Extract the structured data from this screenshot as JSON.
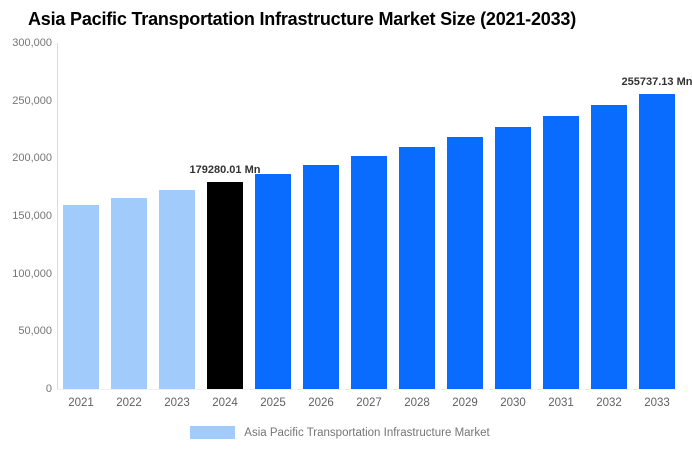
{
  "title": "Asia Pacific Transportation Infrastructure Market Size (2021-2033)",
  "legend": {
    "label": "Asia Pacific Transportation Infrastructure Market",
    "swatch_color": "#A0CBFA"
  },
  "colors": {
    "historical_bar": "#A0CBFA",
    "base_year_bar": "#000000",
    "forecast_bar": "#0A6CFF",
    "axis_line": "#DBDBDB",
    "ytick_text": "#757575",
    "xtick_text": "#616161",
    "data_label_text": "#333333",
    "background": "#FFFFFF"
  },
  "chart_data": {
    "type": "bar",
    "title": "Asia Pacific Transportation Infrastructure Market Size (2021-2033)",
    "unit": "Mn",
    "categories": [
      "2021",
      "2022",
      "2023",
      "2024",
      "2025",
      "2026",
      "2027",
      "2028",
      "2029",
      "2030",
      "2031",
      "2032",
      "2033"
    ],
    "values": [
      159258,
      165674,
      172343,
      179280.01,
      186498,
      194006,
      201816,
      209941,
      218393,
      227186,
      236332,
      245847,
      255737.13
    ],
    "bar_colors": [
      "#A0CBFA",
      "#A0CBFA",
      "#A0CBFA",
      "#000000",
      "#0A6CFF",
      "#0A6CFF",
      "#0A6CFF",
      "#0A6CFF",
      "#0A6CFF",
      "#0A6CFF",
      "#0A6CFF",
      "#0A6CFF",
      "#0A6CFF"
    ],
    "xlabel": "",
    "ylabel": "",
    "ylim": [
      0,
      300000
    ],
    "yticks": [
      0,
      50000,
      100000,
      150000,
      200000,
      250000,
      300000
    ],
    "ytick_labels": [
      "0",
      "50,000",
      "100,000",
      "150,000",
      "200,000",
      "250,000",
      "300,000"
    ],
    "grid": "off",
    "legend_position": "bottom",
    "data_labels": [
      {
        "category": "2024",
        "text": "179280.01 Mn"
      },
      {
        "category": "2033",
        "text": "255737.13 Mn"
      }
    ]
  }
}
